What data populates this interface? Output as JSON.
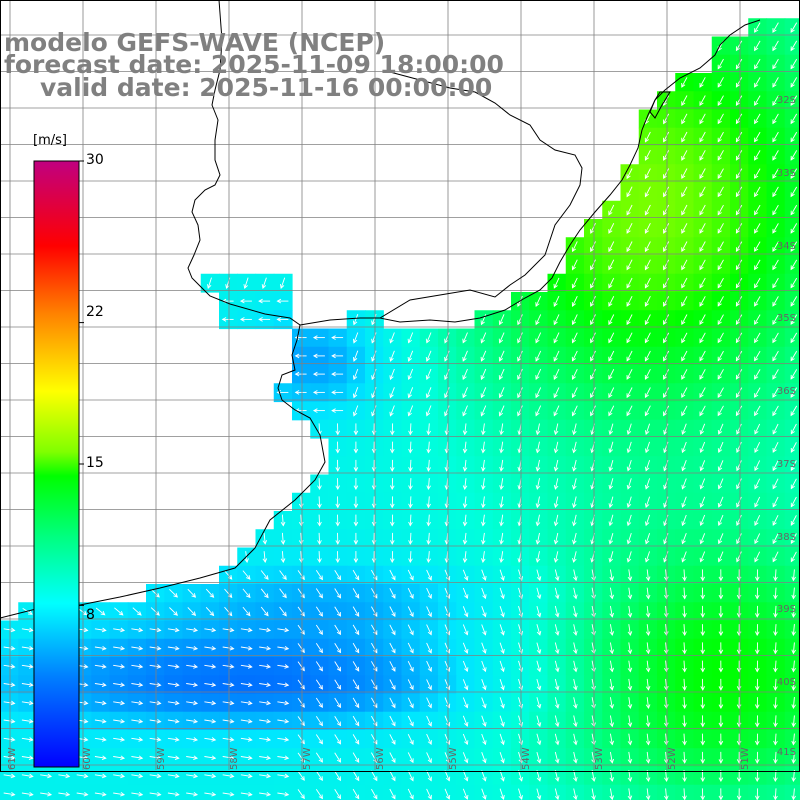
{
  "title": {
    "line1": "modelo GEFS-WAVE (NCEP)",
    "line2": "forecast date: 2025-11-09 18:00:00",
    "line3": "valid date: 2025-11-16 00:00:00"
  },
  "colorbar": {
    "unit": "[m/s]",
    "min": 0,
    "max": 30,
    "ticks": [
      "30",
      "22",
      "15",
      "8"
    ],
    "tick_values": [
      30,
      22,
      15,
      8
    ],
    "colors": [
      "#0000ff",
      "#00a0ff",
      "#00ffff",
      "#00ff00",
      "#ffff00",
      "#ff8000",
      "#ff0000",
      "#c00080"
    ]
  },
  "lat_labels": [
    "32S",
    "33S",
    "34S",
    "35S",
    "36S",
    "37S",
    "38S",
    "39S",
    "40S",
    "41S"
  ],
  "lon_labels": [
    "61W",
    "60W",
    "59W",
    "58W",
    "57W",
    "56W",
    "55W",
    "54W",
    "53W",
    "52W",
    "51W"
  ],
  "legend_colors": {
    "land": "#ffffff",
    "coast": "#000000",
    "grid": "#808080",
    "arrow": "#ffffff"
  }
}
